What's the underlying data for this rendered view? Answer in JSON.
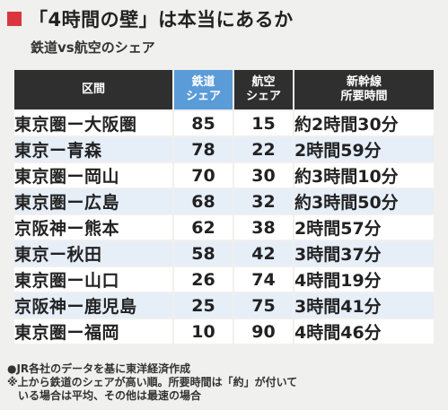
{
  "header": {
    "title": "「4時間の壁」は本当にあるか",
    "subtitle": "鉄道vs航空のシェア",
    "accent_color": "#d9363e"
  },
  "table": {
    "columns": [
      {
        "line1": "区間",
        "line2": ""
      },
      {
        "line1": "鉄道",
        "line2": "シェア"
      },
      {
        "line1": "航空",
        "line2": "シェア"
      },
      {
        "line1": "新幹線",
        "line2": "所要時間"
      }
    ],
    "rows": [
      {
        "route": "東京圏ー大阪圏",
        "rail": "85",
        "air": "15",
        "time": "約2時間30分"
      },
      {
        "route": "東京ー青森",
        "rail": "78",
        "air": "22",
        "time": "2時間59分"
      },
      {
        "route": "東京圏ー岡山",
        "rail": "70",
        "air": "30",
        "time": "約3時間10分"
      },
      {
        "route": "東京圏ー広島",
        "rail": "68",
        "air": "32",
        "time": "約3時間50分"
      },
      {
        "route": "京阪神ー熊本",
        "rail": "62",
        "air": "38",
        "time": "2時間57分"
      },
      {
        "route": "東京ー秋田",
        "rail": "58",
        "air": "42",
        "time": "3時間37分"
      },
      {
        "route": "東京圏ー山口",
        "rail": "26",
        "air": "74",
        "time": "4時間19分"
      },
      {
        "route": "京阪神ー鹿児島",
        "rail": "25",
        "air": "75",
        "time": "3時間41分"
      },
      {
        "route": "東京圏ー福岡",
        "rail": "10",
        "air": "90",
        "time": "4時間46分"
      }
    ],
    "header_color": "#2f2f2f",
    "highlight_color": "#5a9bd8",
    "stripe_color": "#e6eef8"
  },
  "notes": {
    "line1": "●JR各社のデータを基に東洋経済作成",
    "line2": "※上から鉄道のシェアが高い順。所要時間は「約」が付いて",
    "line3": "いる場合は平均、その他は最速の場合"
  }
}
